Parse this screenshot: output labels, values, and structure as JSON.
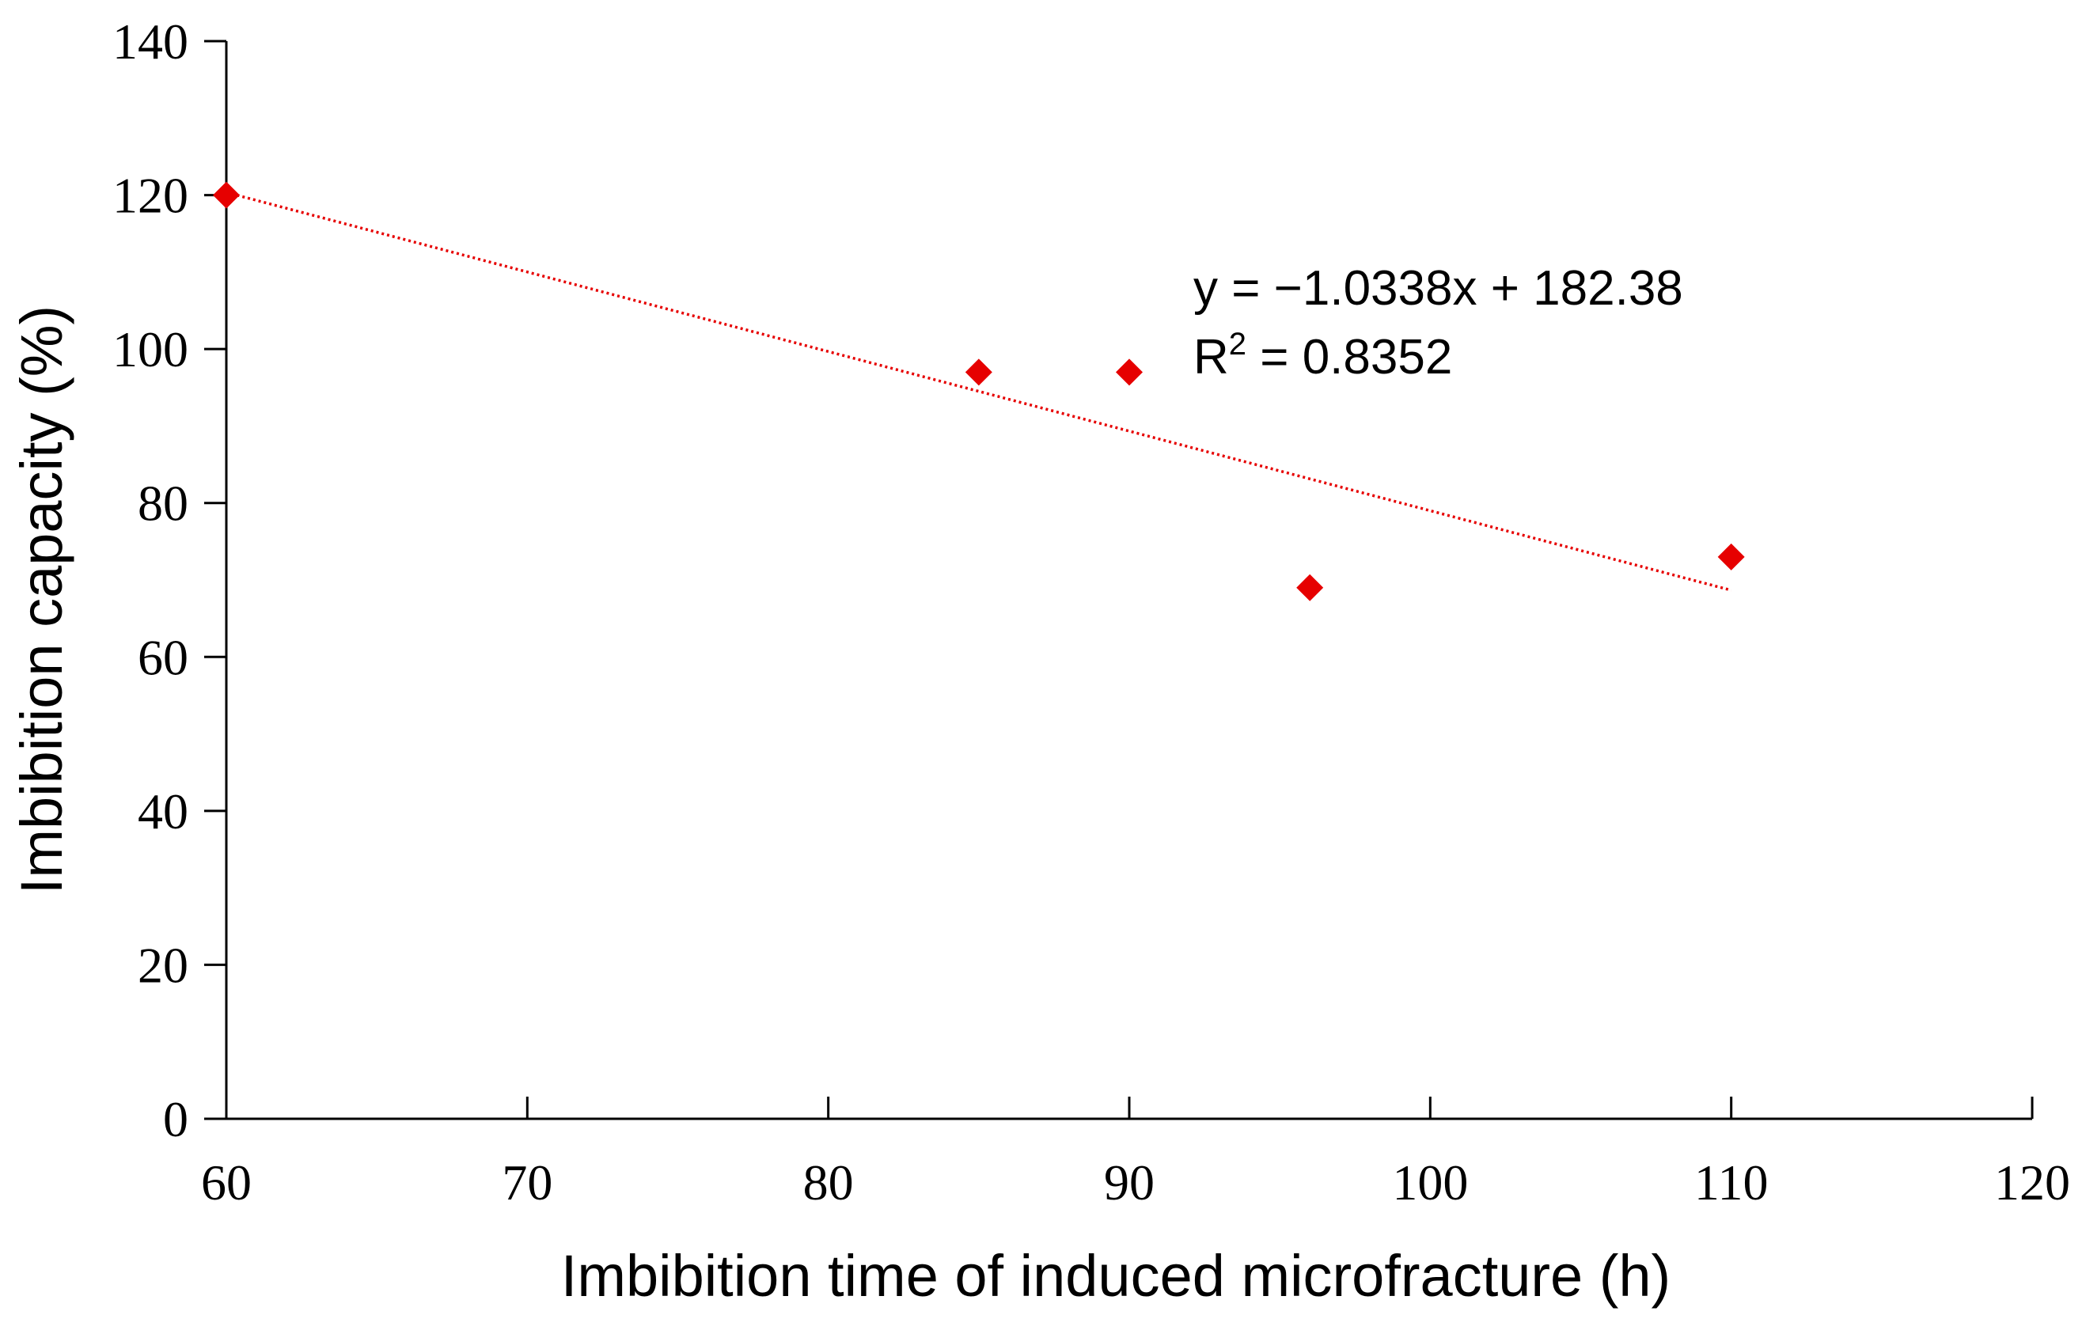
{
  "chart_data": {
    "type": "scatter",
    "title": "",
    "xlabel": "Imbibition time of induced microfracture (h)",
    "ylabel": "Imbibition capacity (%)",
    "xlim": [
      60,
      120
    ],
    "ylim": [
      0,
      140
    ],
    "xticks": [
      60,
      70,
      80,
      90,
      100,
      110,
      120
    ],
    "yticks": [
      0,
      20,
      40,
      60,
      80,
      100,
      120,
      140
    ],
    "grid": false,
    "series": [
      {
        "name": "Imbibition capacity",
        "color": "#e60000",
        "marker": "diamond",
        "x": [
          60,
          85,
          90,
          96,
          110
        ],
        "y": [
          120,
          97,
          97,
          69,
          73
        ]
      }
    ],
    "trendline": {
      "type": "linear",
      "slope": -1.0338,
      "intercept": 182.38,
      "x_range": [
        60,
        110
      ],
      "color": "#e60000",
      "style": "dotted",
      "equation_label": "y = −1.0338x + 182.38",
      "r2_prefix": "R",
      "r2_superscript": "2",
      "r2_value": " = 0.8352"
    }
  }
}
